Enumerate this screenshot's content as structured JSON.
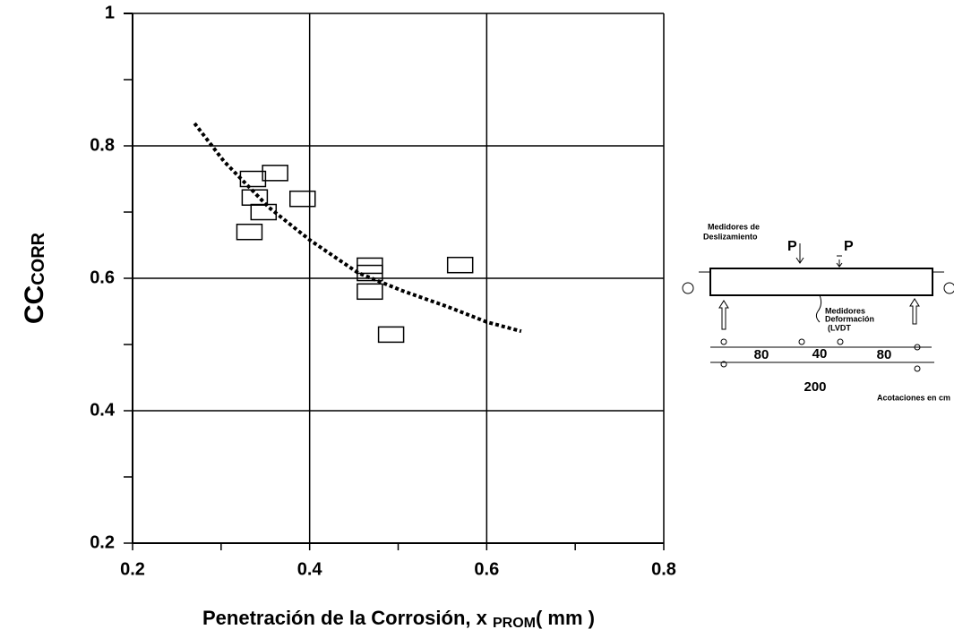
{
  "chart_data": {
    "type": "scatter",
    "xlabel": {
      "main": "Penetración de la Corrosión, x ",
      "sub": "PROM",
      "tail": "( mm )"
    },
    "ylabel": {
      "main": "CC",
      "sub": "CORR"
    },
    "x": [
      0.336,
      0.361,
      0.338,
      0.348,
      0.392,
      0.332,
      0.468,
      0.468,
      0.468,
      0.57,
      0.492
    ],
    "values": [
      0.75,
      0.759,
      0.722,
      0.7,
      0.72,
      0.67,
      0.619,
      0.608,
      0.58,
      0.62,
      0.515
    ],
    "trend": {
      "x": [
        0.27,
        0.303,
        0.354,
        0.4,
        0.455,
        0.505,
        0.556,
        0.6,
        0.639
      ],
      "y": [
        0.834,
        0.777,
        0.707,
        0.658,
        0.608,
        0.581,
        0.557,
        0.534,
        0.52
      ]
    },
    "xlim": [
      0.2,
      0.8
    ],
    "ylim": [
      0.2,
      1
    ],
    "xticks": [
      0.2,
      0.4,
      0.6,
      0.8
    ],
    "yticks": [
      0.2,
      0.4,
      0.6,
      0.8,
      1
    ],
    "xminor": [
      0.3,
      0.5,
      0.7
    ],
    "yminor": [
      0.3,
      0.5,
      0.7,
      0.9
    ],
    "grid": true,
    "color": "#000000"
  },
  "diagram": {
    "slip_gauges": [
      "Medidores de",
      "Deslizamiento"
    ],
    "load_left": "P",
    "load_right": "P",
    "lvdt": [
      "Medidores",
      "Deformación",
      "(LVDT"
    ],
    "dims": [
      "80",
      "40",
      "80"
    ],
    "total": "200",
    "units": "Acotaciones en cm"
  }
}
